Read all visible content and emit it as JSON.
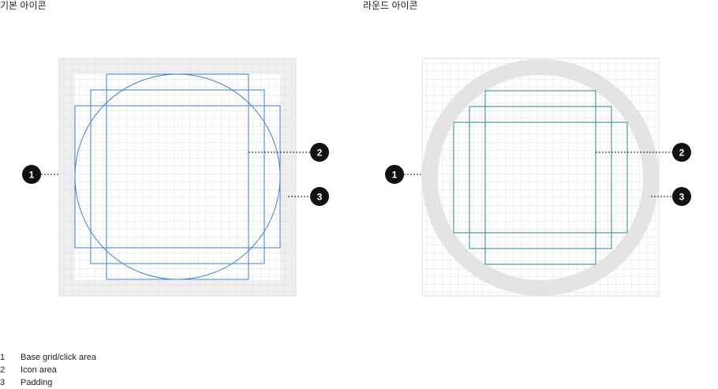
{
  "sections": {
    "basic": {
      "title": "기본 아이콘"
    },
    "round": {
      "title": "라운드 아이콘"
    }
  },
  "callouts": [
    "1",
    "2",
    "3"
  ],
  "legend": [
    {
      "number": "1",
      "label": "Base grid/click area"
    },
    {
      "number": "2",
      "label": "Icon area"
    },
    {
      "number": "3",
      "label": "Padding"
    }
  ],
  "colors": {
    "grid_line": "#e2e2e2",
    "padding_fill": "#efefef",
    "round_ring": "#e4e4e4",
    "basic_keyline": "#3d7fd9",
    "round_keyline": "#2e8a8e",
    "callout": "#111111"
  }
}
